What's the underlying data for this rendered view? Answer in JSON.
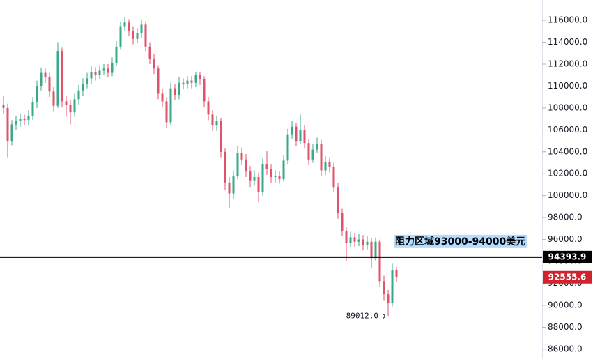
{
  "chart_data": {
    "type": "candlestick",
    "ylim": [
      85100,
      117850
    ],
    "yticks": [
      {
        "value": 86000,
        "label": "86000.0"
      },
      {
        "value": 88000,
        "label": "88000.0"
      },
      {
        "value": 90000,
        "label": "90000.0"
      },
      {
        "value": 92000,
        "label": "92000.0"
      },
      {
        "value": 94000,
        "label": "94000.0"
      },
      {
        "value": 96000,
        "label": "96000.0"
      },
      {
        "value": 98000,
        "label": "98000.0"
      },
      {
        "value": 100000,
        "label": "100000.0"
      },
      {
        "value": 102000,
        "label": "102000.0"
      },
      {
        "value": 104000,
        "label": "104000.0"
      },
      {
        "value": 106000,
        "label": "106000.0"
      },
      {
        "value": 108000,
        "label": "108000.0"
      },
      {
        "value": 110000,
        "label": "110000.0"
      },
      {
        "value": 112000,
        "label": "112000.0"
      },
      {
        "value": 114000,
        "label": "114000.0"
      },
      {
        "value": 116000,
        "label": "116000.0"
      }
    ],
    "up_color": "#3aa88a",
    "down_color": "#e0536a",
    "open": [
      108300,
      108000,
      105000,
      106500,
      106800,
      107000,
      106900,
      107300,
      108500,
      110000,
      111200,
      110800,
      109500,
      108200,
      113200,
      108600,
      108300,
      107600,
      108800,
      109600,
      110200,
      110700,
      111300,
      111000,
      111400,
      111600,
      111200,
      112100,
      113600,
      115400,
      115800,
      115000,
      114300,
      114800,
      115600,
      113600,
      112500,
      111600,
      109300,
      108600,
      106700,
      109800,
      109200,
      110300,
      110200,
      110500,
      110300,
      111000,
      110600,
      108600,
      107400,
      106400,
      106800,
      104000,
      101200,
      100200,
      101800,
      103900,
      103300,
      102200,
      101400,
      101700,
      100300,
      102900,
      102400,
      101700,
      101800,
      101500,
      103200,
      105600,
      106300,
      105000,
      106000,
      104800,
      103300,
      104200,
      104700,
      102300,
      103100,
      102600,
      100800,
      98400,
      96800,
      95700,
      96200,
      95800,
      96000,
      95500,
      95800,
      94300,
      95800,
      92200,
      91000,
      90200,
      93200
    ],
    "high": [
      109100,
      108400,
      106900,
      107300,
      107500,
      107400,
      107800,
      109000,
      110500,
      111700,
      111600,
      111200,
      109900,
      114000,
      113500,
      109100,
      108700,
      109300,
      110100,
      110700,
      111200,
      111800,
      111700,
      111900,
      112000,
      112000,
      112600,
      114100,
      115900,
      116300,
      116100,
      115400,
      115300,
      116100,
      115900,
      114000,
      112900,
      111900,
      109800,
      109000,
      110300,
      110200,
      110800,
      110700,
      110900,
      110900,
      111300,
      111300,
      110900,
      109000,
      107800,
      107300,
      107100,
      104300,
      101700,
      102300,
      104500,
      104400,
      103800,
      102700,
      102300,
      102100,
      103400,
      104100,
      102900,
      102300,
      102200,
      103700,
      106100,
      106800,
      106600,
      107400,
      106400,
      105200,
      104700,
      105300,
      105100,
      103600,
      103500,
      103000,
      101200,
      98800,
      97100,
      96700,
      96600,
      96500,
      96400,
      96300,
      96100,
      96200,
      96000,
      92700,
      91400,
      93800,
      93500
    ],
    "low": [
      107500,
      103500,
      104600,
      106000,
      106300,
      106400,
      106400,
      106900,
      108000,
      109600,
      110300,
      109000,
      107700,
      108000,
      108100,
      107200,
      106500,
      107200,
      108300,
      109100,
      109800,
      110200,
      110500,
      110600,
      111000,
      110800,
      110900,
      111800,
      113300,
      115000,
      114600,
      113800,
      113900,
      114400,
      113200,
      112000,
      111100,
      108800,
      108100,
      106200,
      106400,
      108700,
      108800,
      109700,
      109800,
      109800,
      109900,
      110100,
      108100,
      106900,
      105900,
      105900,
      103500,
      100500,
      98900,
      99700,
      101500,
      102800,
      101700,
      100800,
      100900,
      99400,
      100000,
      101900,
      101200,
      101200,
      101100,
      101300,
      102900,
      105200,
      104500,
      104700,
      104300,
      102800,
      103000,
      103900,
      101800,
      101900,
      102100,
      100300,
      97900,
      96300,
      94000,
      95300,
      95300,
      95400,
      95000,
      95100,
      93400,
      94000,
      91700,
      90400,
      89012,
      89900,
      92100
    ],
    "close": [
      108000,
      105000,
      106500,
      106800,
      107000,
      106900,
      107300,
      108500,
      110000,
      111200,
      110800,
      109500,
      108200,
      113200,
      108600,
      108300,
      107600,
      108800,
      109600,
      110200,
      110700,
      111300,
      111000,
      111400,
      111600,
      111200,
      112100,
      113600,
      115400,
      115800,
      115000,
      114300,
      114800,
      115600,
      113600,
      112500,
      111600,
      109300,
      108600,
      106700,
      109800,
      109200,
      110300,
      110200,
      110500,
      110300,
      111000,
      110600,
      108600,
      107400,
      106400,
      106800,
      104000,
      101200,
      100200,
      101800,
      103900,
      103300,
      102200,
      101400,
      101700,
      100300,
      102900,
      102400,
      101700,
      101800,
      101500,
      103200,
      105600,
      106300,
      105000,
      106000,
      104800,
      103300,
      104200,
      104700,
      102300,
      103100,
      102600,
      100800,
      98400,
      96800,
      95700,
      96200,
      95800,
      96000,
      95500,
      95800,
      94300,
      95800,
      92200,
      91000,
      90200,
      93200,
      92555.6
    ],
    "price_line": 94393.9,
    "last_price": 92555.6,
    "low_label": {
      "value": 89012,
      "label": "89012.0"
    },
    "annotation": "阻力区域93000-94000美元"
  }
}
